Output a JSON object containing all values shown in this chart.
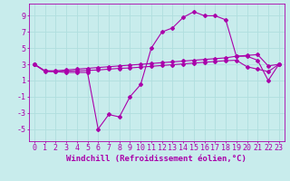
{
  "background_color": "#c8ecec",
  "line_color": "#aa00aa",
  "grid_color": "#b0dede",
  "xlabel": "Windchill (Refroidissement éolien,°C)",
  "xlabel_fontsize": 6.5,
  "tick_fontsize": 6,
  "xlim": [
    -0.5,
    23.5
  ],
  "ylim": [
    -6.5,
    10.5
  ],
  "yticks": [
    -5,
    -3,
    -1,
    1,
    3,
    5,
    7,
    9
  ],
  "xticks": [
    0,
    1,
    2,
    3,
    4,
    5,
    6,
    7,
    8,
    9,
    10,
    11,
    12,
    13,
    14,
    15,
    16,
    17,
    18,
    19,
    20,
    21,
    22,
    23
  ],
  "series1_x": [
    0,
    1,
    2,
    3,
    4,
    5,
    6,
    7,
    8,
    9,
    10,
    11,
    12,
    13,
    14,
    15,
    16,
    17,
    18,
    19,
    20,
    21,
    22,
    23
  ],
  "series1_y": [
    3.0,
    2.2,
    2.1,
    2.0,
    2.0,
    2.0,
    -5.0,
    -3.2,
    -3.5,
    -1.0,
    0.5,
    5.0,
    7.0,
    7.5,
    8.8,
    9.5,
    9.0,
    9.0,
    8.5,
    4.0,
    4.0,
    3.5,
    1.0,
    3.0
  ],
  "series2_x": [
    0,
    1,
    2,
    3,
    4,
    5,
    6,
    7,
    8,
    9,
    10,
    11,
    12,
    13,
    14,
    15,
    16,
    17,
    18,
    19,
    20,
    21,
    22,
    23
  ],
  "series2_y": [
    3.0,
    2.2,
    2.2,
    2.3,
    2.4,
    2.5,
    2.6,
    2.7,
    2.8,
    2.9,
    3.0,
    3.1,
    3.2,
    3.3,
    3.4,
    3.5,
    3.6,
    3.7,
    3.8,
    4.0,
    4.1,
    4.2,
    2.8,
    3.0
  ],
  "series3_x": [
    0,
    1,
    2,
    3,
    4,
    5,
    6,
    7,
    8,
    9,
    10,
    11,
    12,
    13,
    14,
    15,
    16,
    17,
    18,
    19,
    20,
    21,
    22,
    23
  ],
  "series3_y": [
    3.0,
    2.1,
    2.1,
    2.15,
    2.2,
    2.25,
    2.3,
    2.4,
    2.5,
    2.55,
    2.65,
    2.75,
    2.85,
    2.95,
    3.05,
    3.15,
    3.25,
    3.35,
    3.45,
    3.5,
    2.7,
    2.4,
    2.1,
    3.0
  ]
}
